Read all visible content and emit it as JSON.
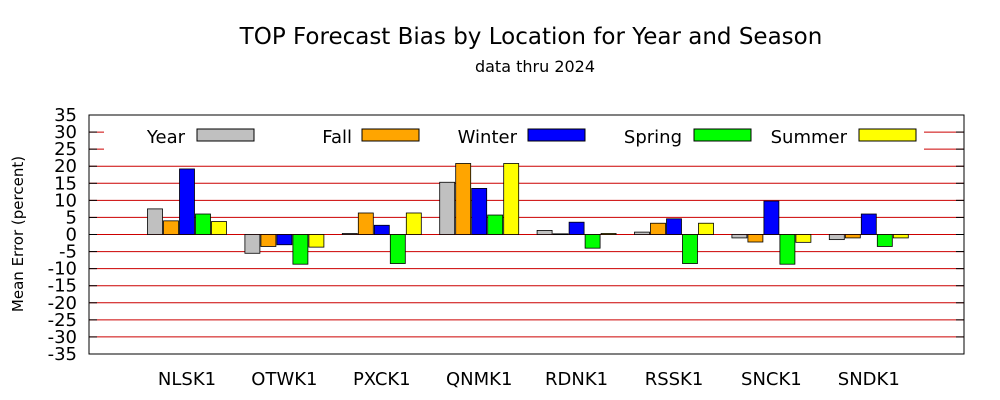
{
  "chart_data": {
    "type": "bar",
    "title": "TOP Forecast Bias by Location for Year and Season",
    "subtitle": "data thru 2024",
    "xlabel": "",
    "ylabel": "Mean Error (percent)",
    "ylim": [
      -35,
      35
    ],
    "yticks": [
      35,
      30,
      25,
      20,
      15,
      10,
      5,
      0,
      -5,
      -10,
      -15,
      -20,
      -25,
      -30,
      -35
    ],
    "ytick_labels": [
      "35",
      "30",
      "25",
      "20",
      "15",
      "10",
      "5",
      "0",
      "-5",
      "-10",
      "-15",
      "-20",
      "-25",
      "-30",
      "-35"
    ],
    "grid": "horizontal",
    "grid_color": "#cc0000",
    "legend_position": "top",
    "categories": [
      "NLSK1",
      "OTWK1",
      "PXCK1",
      "QNMK1",
      "RDNK1",
      "RSSK1",
      "SNCK1",
      "SNDK1"
    ],
    "series": [
      {
        "name": "Year",
        "color": "#c0c0c0",
        "values": [
          7.5,
          -5.5,
          0.3,
          15.3,
          1.2,
          0.7,
          -1.0,
          -1.5
        ]
      },
      {
        "name": "Fall",
        "color": "#ffa500",
        "values": [
          4.0,
          -3.5,
          6.3,
          20.8,
          0.2,
          3.3,
          -2.2,
          -1.0
        ]
      },
      {
        "name": "Winter",
        "color": "#0000ff",
        "values": [
          19.2,
          -3.0,
          2.7,
          13.5,
          3.6,
          4.6,
          9.8,
          6.0
        ]
      },
      {
        "name": "Spring",
        "color": "#00ff00",
        "values": [
          6.0,
          -8.7,
          -8.5,
          5.7,
          -4.0,
          -8.5,
          -8.7,
          -3.5
        ]
      },
      {
        "name": "Summer",
        "color": "#ffff00",
        "values": [
          3.8,
          -3.7,
          6.3,
          20.8,
          0.3,
          3.3,
          -2.3,
          -1.0
        ]
      }
    ]
  }
}
